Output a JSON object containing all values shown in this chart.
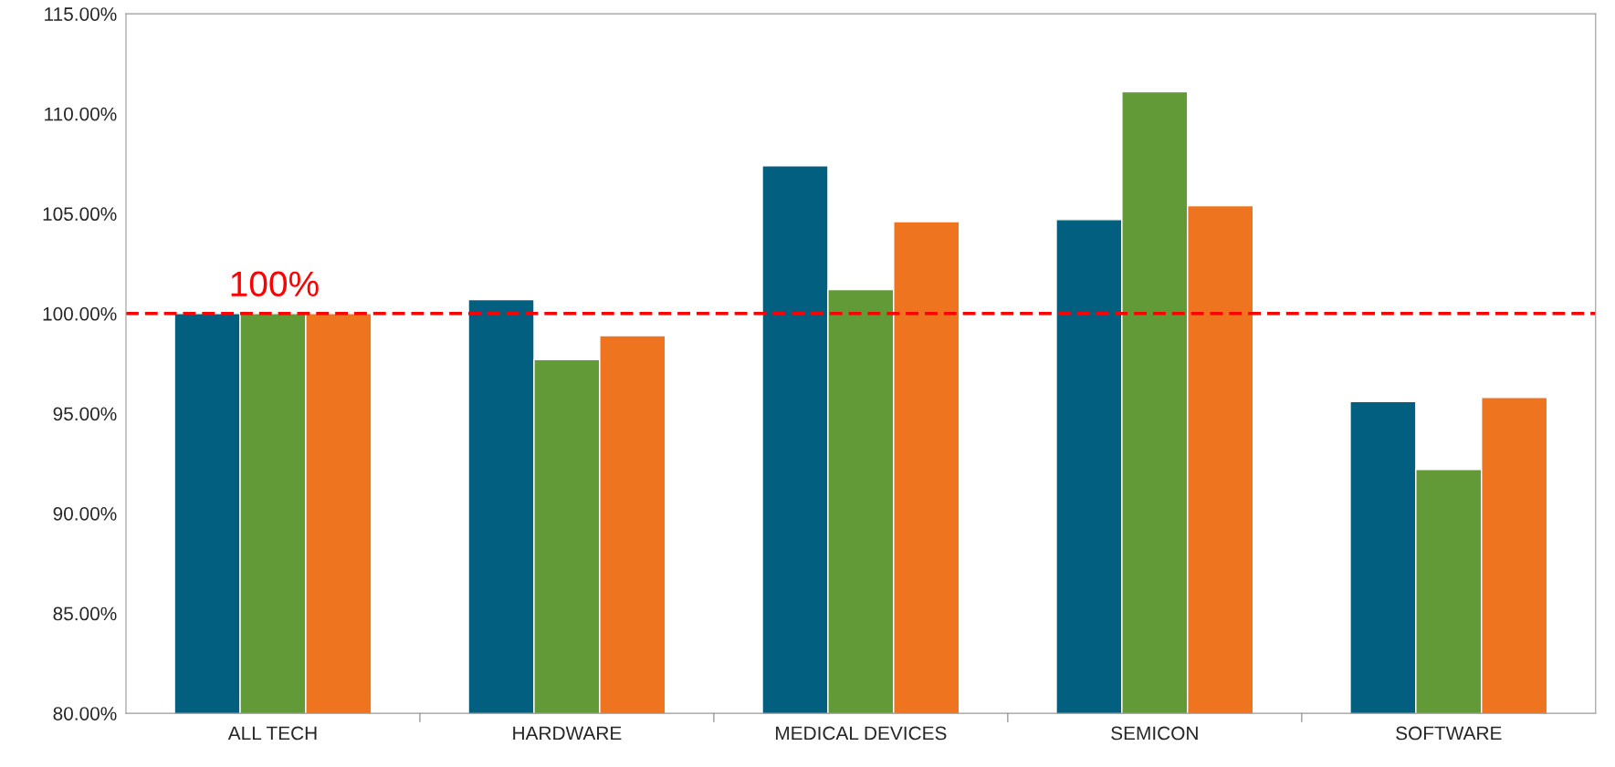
{
  "chart_data": {
    "type": "bar",
    "categories": [
      "ALL TECH",
      "HARDWARE",
      "MEDICAL DEVICES",
      "SEMICON",
      "SOFTWARE"
    ],
    "series": [
      {
        "color": "#035f7f",
        "values": [
          100.0,
          100.7,
          107.4,
          104.7,
          95.6
        ]
      },
      {
        "color": "#629a37",
        "values": [
          100.0,
          97.7,
          101.2,
          111.1,
          92.2
        ]
      },
      {
        "color": "#ef7420",
        "values": [
          100.0,
          98.9,
          104.6,
          105.4,
          95.8
        ]
      }
    ],
    "ylim": [
      80,
      115
    ],
    "yticks": [
      {
        "value": 80,
        "label": "80.00%"
      },
      {
        "value": 85,
        "label": "85.00%"
      },
      {
        "value": 90,
        "label": "90.00%"
      },
      {
        "value": 95,
        "label": "95.00%"
      },
      {
        "value": 100,
        "label": "100.00%"
      },
      {
        "value": 105,
        "label": "105.00%"
      },
      {
        "value": 110,
        "label": "110.00%"
      },
      {
        "value": 115,
        "label": "115.00%"
      }
    ],
    "ref_lines": [
      {
        "axis": "y",
        "value": 100,
        "label": "100%",
        "color": "#ff0000",
        "line_style": "dashed"
      }
    ],
    "grid": false,
    "legend": false
  }
}
